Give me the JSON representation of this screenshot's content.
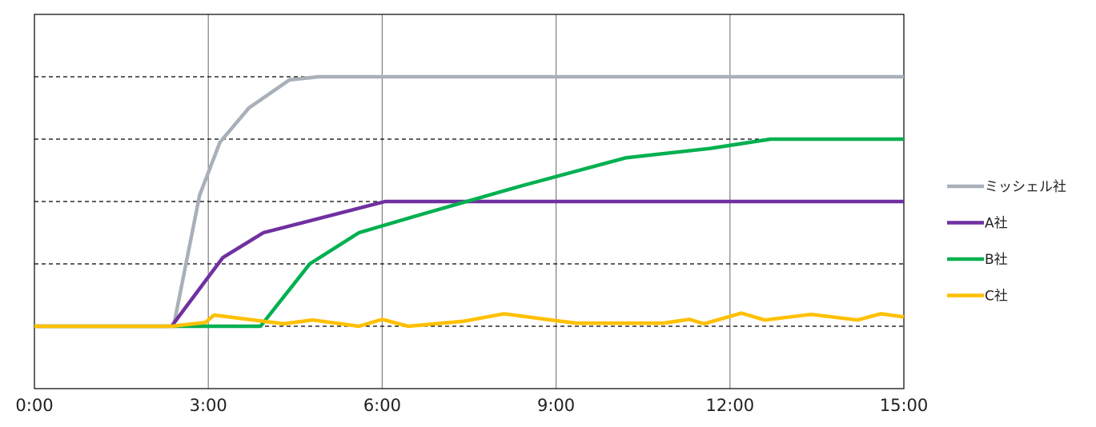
{
  "chart_data": {
    "type": "line",
    "title": "",
    "xlabel": "",
    "ylabel": "",
    "x_ticks": [
      "0:00",
      "3:00",
      "6:00",
      "9:00",
      "12:00",
      "15:00"
    ],
    "xlim": [
      0,
      900
    ],
    "ylim": [
      0,
      6
    ],
    "y_gridlines": [
      1,
      2,
      3,
      4,
      5
    ],
    "y_gridline_style": "dashed",
    "x_gridlines": [
      180,
      360,
      540,
      720
    ],
    "legend_position": "right",
    "series": [
      {
        "name": "ミッシェル社",
        "color": "#A9B0B9",
        "points": [
          [
            0,
            1.0
          ],
          [
            144,
            1.0
          ],
          [
            171,
            3.1
          ],
          [
            192,
            3.95
          ],
          [
            222,
            4.5
          ],
          [
            264,
            4.95
          ],
          [
            294,
            5.0
          ],
          [
            900,
            5.0
          ]
        ]
      },
      {
        "name": "A社",
        "color": "#7030A0",
        "points": [
          [
            0,
            1.0
          ],
          [
            142,
            1.0
          ],
          [
            195,
            2.1
          ],
          [
            237,
            2.5
          ],
          [
            363,
            3.0
          ],
          [
            900,
            3.0
          ]
        ]
      },
      {
        "name": "B社",
        "color": "#00B050",
        "points": [
          [
            0,
            1.0
          ],
          [
            234,
            1.0
          ],
          [
            285,
            2.0
          ],
          [
            336,
            2.5
          ],
          [
            402,
            2.8
          ],
          [
            504,
            3.25
          ],
          [
            564,
            3.5
          ],
          [
            612,
            3.7
          ],
          [
            699,
            3.85
          ],
          [
            762,
            4.0
          ],
          [
            900,
            4.0
          ]
        ]
      },
      {
        "name": "C社",
        "color": "#FFC000",
        "points": [
          [
            0,
            1.0
          ],
          [
            142,
            1.0
          ],
          [
            177,
            1.06
          ],
          [
            186,
            1.18
          ],
          [
            216,
            1.12
          ],
          [
            258,
            1.04
          ],
          [
            288,
            1.1
          ],
          [
            336,
            1.0
          ],
          [
            360,
            1.11
          ],
          [
            387,
            1.0
          ],
          [
            444,
            1.08
          ],
          [
            486,
            1.2
          ],
          [
            540,
            1.09
          ],
          [
            561,
            1.05
          ],
          [
            624,
            1.05
          ],
          [
            651,
            1.05
          ],
          [
            678,
            1.11
          ],
          [
            693,
            1.04
          ],
          [
            732,
            1.21
          ],
          [
            756,
            1.1
          ],
          [
            804,
            1.19
          ],
          [
            852,
            1.1
          ],
          [
            876,
            1.2
          ],
          [
            900,
            1.15
          ]
        ]
      }
    ]
  }
}
